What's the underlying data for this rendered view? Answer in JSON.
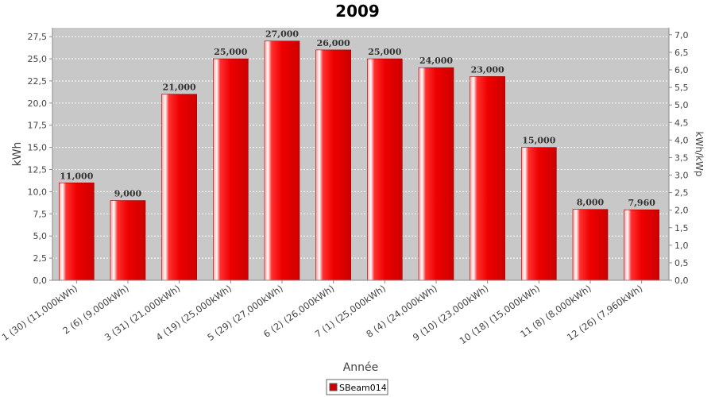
{
  "chart_data": {
    "type": "bar",
    "title": "2009",
    "xlabel": "Année",
    "ylabel": "kWh",
    "y2label": "kWh/kWp",
    "ylim": [
      0,
      28.5
    ],
    "y2lim": [
      0,
      7.2
    ],
    "yticks": [
      "0,0",
      "2,5",
      "5,0",
      "7,5",
      "10,0",
      "12,5",
      "15,0",
      "17,5",
      "20,0",
      "22,5",
      "25,0",
      "27,5"
    ],
    "y2ticks": [
      "0,0",
      "0,5",
      "1,0",
      "1,5",
      "2,0",
      "2,5",
      "3,0",
      "3,5",
      "4,0",
      "4,5",
      "5,0",
      "5,5",
      "6,0",
      "6,5",
      "7,0"
    ],
    "categories": [
      "1 (30)  (11,000kWh)",
      "2 (6)  (9,000kWh)",
      "3 (31)  (21,000kWh)",
      "4 (19)  (25,000kWh)",
      "5 (29)  (27,000kWh)",
      "6 (2)  (26,000kWh)",
      "7 (1)  (25,000kWh)",
      "8 (4)  (24,000kWh)",
      "9 (10)  (23,000kWh)",
      "10 (18)  (15,000kWh)",
      "11 (8)  (8,000kWh)",
      "12 (26)  (7,960kWh)"
    ],
    "series": [
      {
        "name": "SBeam014",
        "values": [
          11.0,
          9.0,
          21.0,
          25.0,
          27.0,
          26.0,
          25.0,
          24.0,
          23.0,
          15.0,
          8.0,
          7.96
        ],
        "labels": [
          "11,000",
          "9,000",
          "21,000",
          "25,000",
          "27,000",
          "26,000",
          "25,000",
          "24,000",
          "23,000",
          "15,000",
          "8,000",
          "7,960"
        ],
        "color": "#ee0000"
      }
    ],
    "grid": true,
    "legend": "bottom",
    "plot_bg": "#c8c8c8"
  }
}
